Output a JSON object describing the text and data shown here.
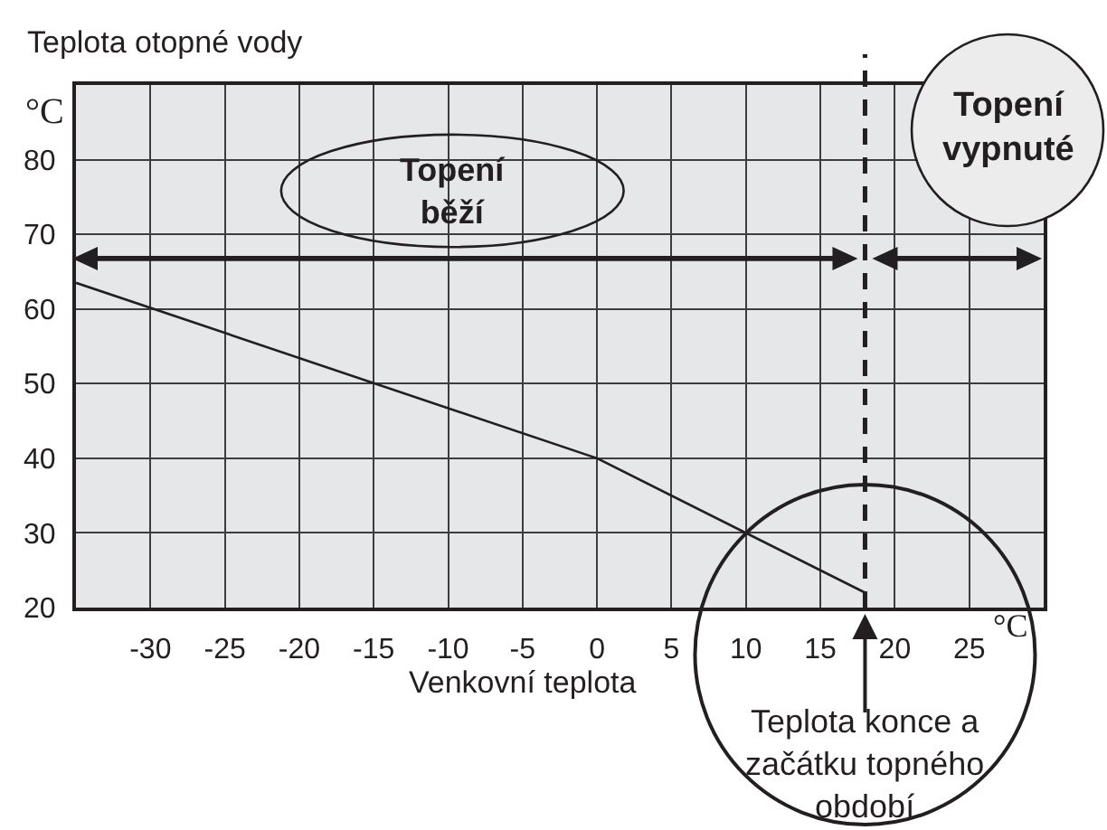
{
  "chart_data": {
    "type": "line",
    "xlabel": "Venkovní teplota",
    "ylabel": "Teplota otopné vody",
    "x": [
      -35,
      0,
      18
    ],
    "values": [
      63.5,
      40,
      22
    ],
    "color": "#231f20",
    "xlim": [
      -35,
      30
    ],
    "xticks": [
      -30,
      -25,
      -20,
      -15,
      -10,
      -5,
      0,
      5,
      10,
      15,
      20,
      25
    ],
    "ylim": [
      20,
      90
    ],
    "yticks": [
      20,
      30,
      40,
      50,
      60,
      70,
      80
    ],
    "grid": true,
    "ref_lines": [
      {
        "axis": "x",
        "value": 18,
        "label": "Teplota konce a začátku topného období",
        "color": "#231f20",
        "line_style": "dashed"
      }
    ],
    "annotations": [
      "°C",
      "°C",
      "Topení běží",
      "Topení vypnuté"
    ]
  }
}
